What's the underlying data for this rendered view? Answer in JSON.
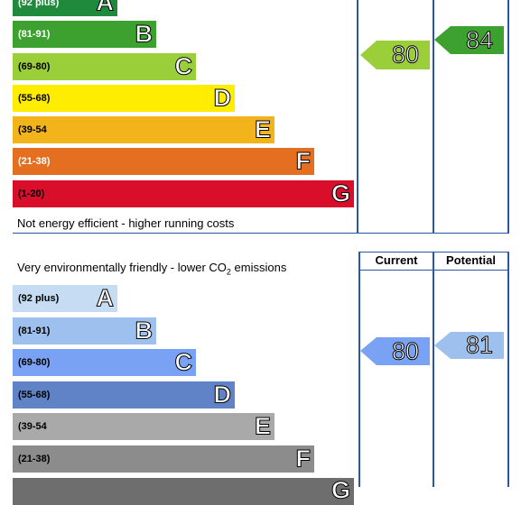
{
  "energy_chart": {
    "bands": [
      {
        "range": "(92 plus)",
        "letter": "A",
        "color": "#1f8a3b",
        "text_color": "#ffffff"
      },
      {
        "range": "(81-91)",
        "letter": "B",
        "color": "#3ca12f",
        "text_color": "#ffffff"
      },
      {
        "range": "(69-80)",
        "letter": "C",
        "color": "#9bcf3a",
        "text_color": "#000000"
      },
      {
        "range": "(55-68)",
        "letter": "D",
        "color": "#ffed00",
        "text_color": "#000000"
      },
      {
        "range": "(39-54",
        "letter": "E",
        "color": "#f3b31b",
        "text_color": "#000000"
      },
      {
        "range": "(21-38)",
        "letter": "F",
        "color": "#e46f20",
        "text_color": "#ffffff"
      },
      {
        "range": "(1-20)",
        "letter": "G",
        "color": "#d90e2b",
        "text_color": "#000000"
      }
    ],
    "footer": "Not energy efficient - higher running costs",
    "current": {
      "value": "80",
      "color": "#9bcf3a"
    },
    "potential": {
      "value": "84",
      "color": "#3ca12f"
    }
  },
  "env_chart": {
    "header_prefix": "Very environmentally friendly - lower CO",
    "header_sub": "2",
    "header_suffix": " emissions",
    "col_current": "Current",
    "col_potential": "Potential",
    "bands": [
      {
        "range": "(92 plus)",
        "letter": "A",
        "color": "#c5dcf3"
      },
      {
        "range": "(81-91)",
        "letter": "B",
        "color": "#9ec0ee"
      },
      {
        "range": "(69-80)",
        "letter": "C",
        "color": "#7aa2f4"
      },
      {
        "range": "(55-68)",
        "letter": "D",
        "color": "#5f83c6"
      },
      {
        "range": "(39-54",
        "letter": "E",
        "color": "#a9a9a9"
      },
      {
        "range": "(21-38)",
        "letter": "F",
        "color": "#8c8c8c"
      },
      {
        "range": "",
        "letter": "G",
        "color": "#6e6e6e"
      }
    ],
    "current": {
      "value": "80",
      "color": "#7aa2f4"
    },
    "potential": {
      "value": "81",
      "color": "#9ec0ee"
    }
  }
}
